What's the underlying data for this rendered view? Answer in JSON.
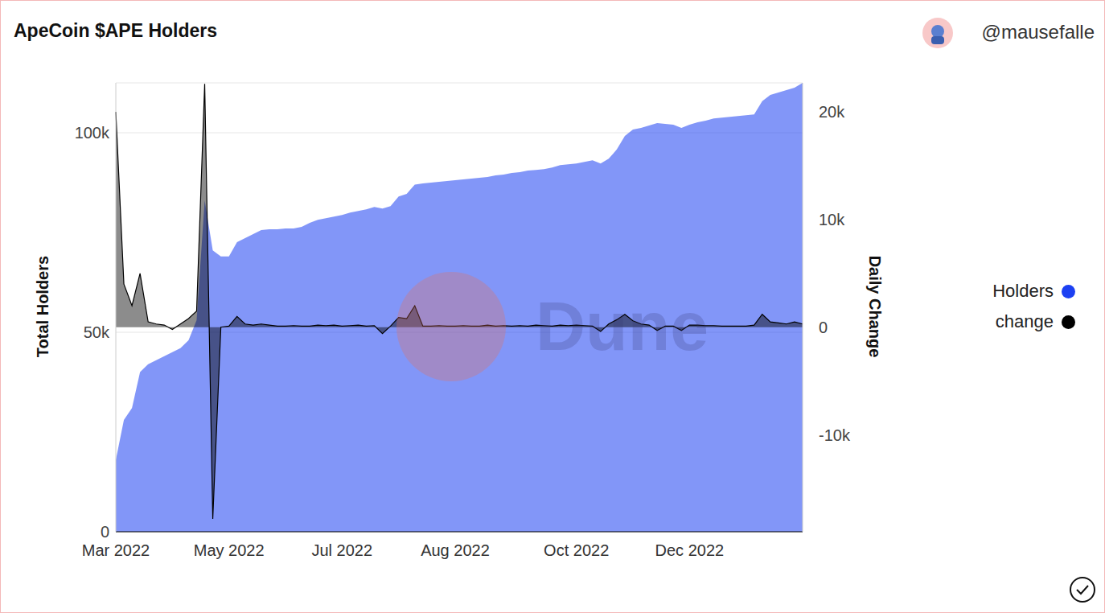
{
  "chart_data": {
    "type": "area",
    "title": "ApeCoin $APE Holders",
    "source": "@mausefalle",
    "watermark": "Dune",
    "y_label": "Total Holders",
    "y2_label": "Daily Change",
    "categories": [
      "Mar 2022",
      null,
      null,
      null,
      null,
      null,
      null,
      null,
      null,
      null,
      null,
      null,
      null,
      null,
      "May 2022",
      null,
      null,
      null,
      null,
      null,
      null,
      null,
      null,
      null,
      null,
      null,
      null,
      null,
      "Jul 2022",
      null,
      null,
      null,
      null,
      null,
      null,
      null,
      null,
      null,
      null,
      null,
      null,
      null,
      "Aug 2022",
      null,
      null,
      null,
      null,
      null,
      null,
      null,
      null,
      null,
      null,
      null,
      null,
      null,
      null,
      "Oct 2022",
      null,
      null,
      null,
      null,
      null,
      null,
      null,
      null,
      null,
      null,
      null,
      null,
      null,
      "Dec 2022",
      null,
      null,
      null,
      null,
      null,
      null,
      null,
      null,
      null,
      null,
      null,
      null,
      null,
      null
    ],
    "series": [
      {
        "name": "Holders",
        "color": "#1c40f2",
        "axis": "y",
        "values": [
          18000,
          28000,
          31000,
          40000,
          42000,
          43000,
          44000,
          45000,
          46000,
          48000,
          53000,
          83000,
          70500,
          69000,
          69000,
          72600,
          73600,
          74600,
          75600,
          75800,
          75800,
          76000,
          76000,
          76400,
          77400,
          78200,
          78600,
          79000,
          79400,
          80000,
          80400,
          80800,
          81400,
          81000,
          81600,
          84000,
          84700,
          87000,
          87300,
          87500,
          87700,
          87900,
          88100,
          88300,
          88500,
          88700,
          88900,
          89300,
          89500,
          89900,
          90100,
          90500,
          90700,
          90900,
          91300,
          91900,
          92100,
          92300,
          92700,
          93100,
          92300,
          93500,
          95800,
          99200,
          100800,
          101200,
          101800,
          102400,
          102200,
          102000,
          101200,
          102000,
          102600,
          103000,
          103600,
          103800,
          104000,
          104200,
          104400,
          104600,
          107900,
          109500,
          110100,
          110700,
          111300,
          112500
        ]
      },
      {
        "name": "change",
        "color": "#000000",
        "axis": "y2",
        "values": [
          20000,
          4000,
          2000,
          5000,
          500,
          300,
          200,
          -200,
          300,
          800,
          1500,
          22600,
          -17800,
          0,
          100,
          1000,
          300,
          200,
          300,
          200,
          100,
          100,
          150,
          100,
          100,
          200,
          150,
          200,
          100,
          150,
          200,
          100,
          150,
          -600,
          100,
          900,
          800,
          2000,
          100,
          100,
          150,
          100,
          100,
          150,
          100,
          100,
          200,
          100,
          150,
          100,
          150,
          100,
          200,
          150,
          100,
          200,
          150,
          200,
          150,
          100,
          -400,
          300,
          700,
          1200,
          600,
          300,
          200,
          -300,
          100,
          100,
          -300,
          200,
          200,
          150,
          150,
          100,
          100,
          100,
          100,
          200,
          1200,
          500,
          400,
          300,
          500,
          300
        ]
      }
    ],
    "ylim": [
      0,
      112500
    ],
    "yticks": [
      0,
      {
        "value": 50000,
        "label": "50k"
      },
      {
        "value": 100000,
        "label": "100k"
      }
    ],
    "y2lim": [
      -19000,
      22700
    ],
    "y2ticks": [
      {
        "value": -10000,
        "label": "-10k"
      },
      0,
      {
        "value": 10000,
        "label": "10k"
      },
      {
        "value": 20000,
        "label": "20k"
      }
    ],
    "grid": true,
    "legend": "right"
  }
}
